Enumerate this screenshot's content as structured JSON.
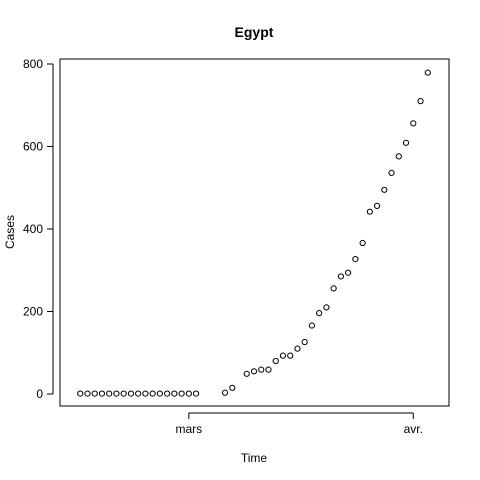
{
  "chart_data": {
    "type": "scatter",
    "title": "Egypt",
    "xlabel": "Time",
    "ylabel": "Cases",
    "x_ticks": [
      {
        "value": "2020-03-01",
        "label": "mars"
      },
      {
        "value": "2020-04-01",
        "label": "avr."
      }
    ],
    "y_ticks": [
      0,
      200,
      400,
      600,
      800
    ],
    "xlim": [
      "2020-02-14",
      "2020-04-04"
    ],
    "ylim": [
      0,
      800
    ],
    "grid": false,
    "marker": "open-circle",
    "series": [
      {
        "x": [
          "2020-02-15",
          "2020-02-16",
          "2020-02-17",
          "2020-02-18",
          "2020-02-19",
          "2020-02-20",
          "2020-02-21",
          "2020-02-22",
          "2020-02-23",
          "2020-02-24",
          "2020-02-25",
          "2020-02-26",
          "2020-02-27",
          "2020-02-28",
          "2020-02-29",
          "2020-03-01",
          "2020-03-02",
          "2020-03-06",
          "2020-03-07",
          "2020-03-09",
          "2020-03-10",
          "2020-03-11",
          "2020-03-12",
          "2020-03-13",
          "2020-03-14",
          "2020-03-15",
          "2020-03-16",
          "2020-03-17",
          "2020-03-18",
          "2020-03-19",
          "2020-03-20",
          "2020-03-21",
          "2020-03-22",
          "2020-03-23",
          "2020-03-24",
          "2020-03-25",
          "2020-03-26",
          "2020-03-27",
          "2020-03-28",
          "2020-03-29",
          "2020-03-30",
          "2020-03-31",
          "2020-04-01",
          "2020-04-02",
          "2020-04-03"
        ],
        "y": [
          1,
          1,
          1,
          1,
          1,
          1,
          1,
          1,
          1,
          1,
          1,
          1,
          1,
          1,
          1,
          1,
          1,
          3,
          15,
          49,
          55,
          59,
          59,
          80,
          93,
          93,
          110,
          126,
          166,
          196,
          210,
          256,
          285,
          294,
          327,
          366,
          442,
          456,
          495,
          536,
          576,
          609,
          656,
          710,
          779
        ]
      }
    ]
  }
}
